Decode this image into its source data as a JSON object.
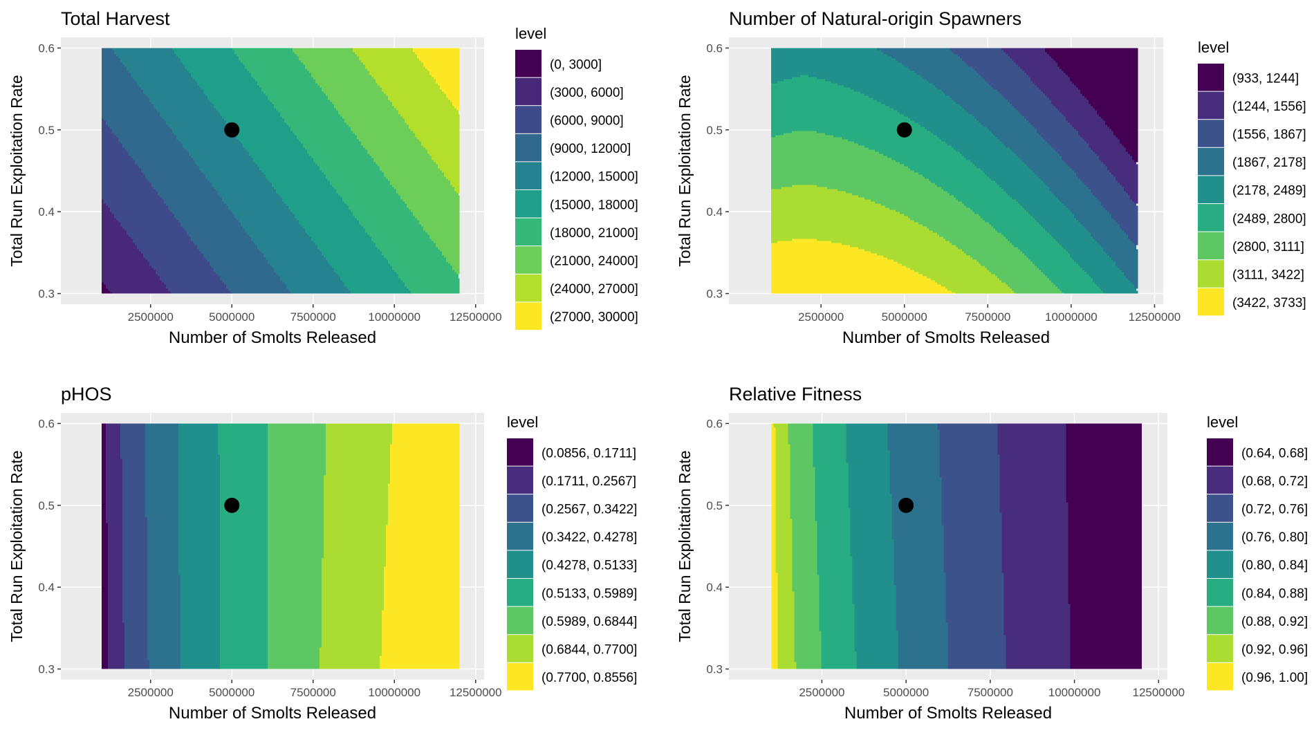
{
  "chart_data": [
    {
      "type": "contour",
      "title": "Total Harvest",
      "xlabel": "Number of Smolts Released",
      "ylabel": "Total Run Exploitation Rate",
      "x_ticks": [
        "2500000",
        "5000000",
        "7500000",
        "10000000",
        "12500000"
      ],
      "y_ticks": [
        "0.3",
        "0.4",
        "0.5",
        "0.6"
      ],
      "xlim": [
        0,
        12500000
      ],
      "ylim": [
        0.3,
        0.6
      ],
      "data_range_x": [
        1000000,
        12000000
      ],
      "marker": {
        "x": 5000000,
        "y": 0.5
      },
      "contour_model": "harvest",
      "legend_title": "level",
      "levels": [
        "(0, 3000]",
        "(3000, 6000]",
        "(6000, 9000]",
        "(9000, 12000]",
        "(12000, 15000]",
        "(15000, 18000]",
        "(18000, 21000]",
        "(21000, 24000]",
        "(24000, 27000]",
        "(27000, 30000]"
      ],
      "colors": [
        "#440154",
        "#472D7B",
        "#3B528B",
        "#2C728E",
        "#21908C",
        "#27AD81",
        "#5DC863",
        "#AADC32",
        "#FDE725"
      ],
      "level_colors": [
        "#440154",
        "#482878",
        "#3E4A89",
        "#31688E",
        "#26828E",
        "#1F9E89",
        "#35B779",
        "#6DCD59",
        "#B4DE2C",
        "#FDE725"
      ]
    },
    {
      "type": "contour",
      "title": "Number of Natural-origin Spawners",
      "xlabel": "Number of Smolts Released",
      "ylabel": "Total Run Exploitation Rate",
      "x_ticks": [
        "2500000",
        "5000000",
        "7500000",
        "10000000",
        "12500000"
      ],
      "y_ticks": [
        "0.3",
        "0.4",
        "0.5",
        "0.6"
      ],
      "xlim": [
        0,
        12500000
      ],
      "ylim": [
        0.3,
        0.6
      ],
      "data_range_x": [
        1000000,
        12000000
      ],
      "marker": {
        "x": 5000000,
        "y": 0.5
      },
      "contour_model": "spawners",
      "legend_title": "level",
      "levels": [
        "(933, 1244]",
        "(1244, 1556]",
        "(1556, 1867]",
        "(1867, 2178]",
        "(2178, 2489]",
        "(2489, 2800]",
        "(2800, 3111]",
        "(3111, 3422]",
        "(3422, 3733]"
      ],
      "level_colors": [
        "#440154",
        "#472D7B",
        "#3B528B",
        "#2C728E",
        "#21908C",
        "#27AD81",
        "#5DC863",
        "#AADC32",
        "#FDE725"
      ]
    },
    {
      "type": "contour",
      "title": "pHOS",
      "xlabel": "Number of Smolts Released",
      "ylabel": "Total Run Exploitation Rate",
      "x_ticks": [
        "2500000",
        "5000000",
        "7500000",
        "10000000",
        "12500000"
      ],
      "y_ticks": [
        "0.3",
        "0.4",
        "0.5",
        "0.6"
      ],
      "xlim": [
        0,
        12500000
      ],
      "ylim": [
        0.3,
        0.6
      ],
      "data_range_x": [
        1000000,
        12000000
      ],
      "marker": {
        "x": 5000000,
        "y": 0.5
      },
      "contour_model": "phos",
      "legend_title": "level",
      "levels": [
        "(0.0856, 0.1711]",
        "(0.1711, 0.2567]",
        "(0.2567, 0.3422]",
        "(0.3422, 0.4278]",
        "(0.4278, 0.5133]",
        "(0.5133, 0.5989]",
        "(0.5989, 0.6844]",
        "(0.6844, 0.7700]",
        "(0.7700, 0.8556]"
      ],
      "level_colors": [
        "#440154",
        "#472D7B",
        "#3B528B",
        "#2C728E",
        "#21908C",
        "#27AD81",
        "#5DC863",
        "#AADC32",
        "#FDE725"
      ]
    },
    {
      "type": "contour",
      "title": "Relative Fitness",
      "xlabel": "Number of Smolts Released",
      "ylabel": "Total Run Exploitation Rate",
      "x_ticks": [
        "2500000",
        "5000000",
        "7500000",
        "10000000",
        "12500000"
      ],
      "y_ticks": [
        "0.3",
        "0.4",
        "0.5",
        "0.6"
      ],
      "xlim": [
        0,
        12500000
      ],
      "ylim": [
        0.3,
        0.6
      ],
      "data_range_x": [
        1000000,
        12000000
      ],
      "marker": {
        "x": 5000000,
        "y": 0.5
      },
      "contour_model": "fitness",
      "legend_title": "level",
      "levels": [
        "(0.64, 0.68]",
        "(0.68, 0.72]",
        "(0.72, 0.76]",
        "(0.76, 0.80]",
        "(0.80, 0.84]",
        "(0.84, 0.88]",
        "(0.88, 0.92]",
        "(0.92, 0.96]",
        "(0.96, 1.00]"
      ],
      "level_colors": [
        "#440154",
        "#472D7B",
        "#3B528B",
        "#2C728E",
        "#21908C",
        "#27AD81",
        "#5DC863",
        "#AADC32",
        "#FDE725"
      ]
    }
  ],
  "colors": {
    "panel_background": "#EBEBEB",
    "gridline": "#FFFFFF",
    "text": "#000000",
    "tick_text": "#4D4D4D",
    "marker": "#000000"
  }
}
